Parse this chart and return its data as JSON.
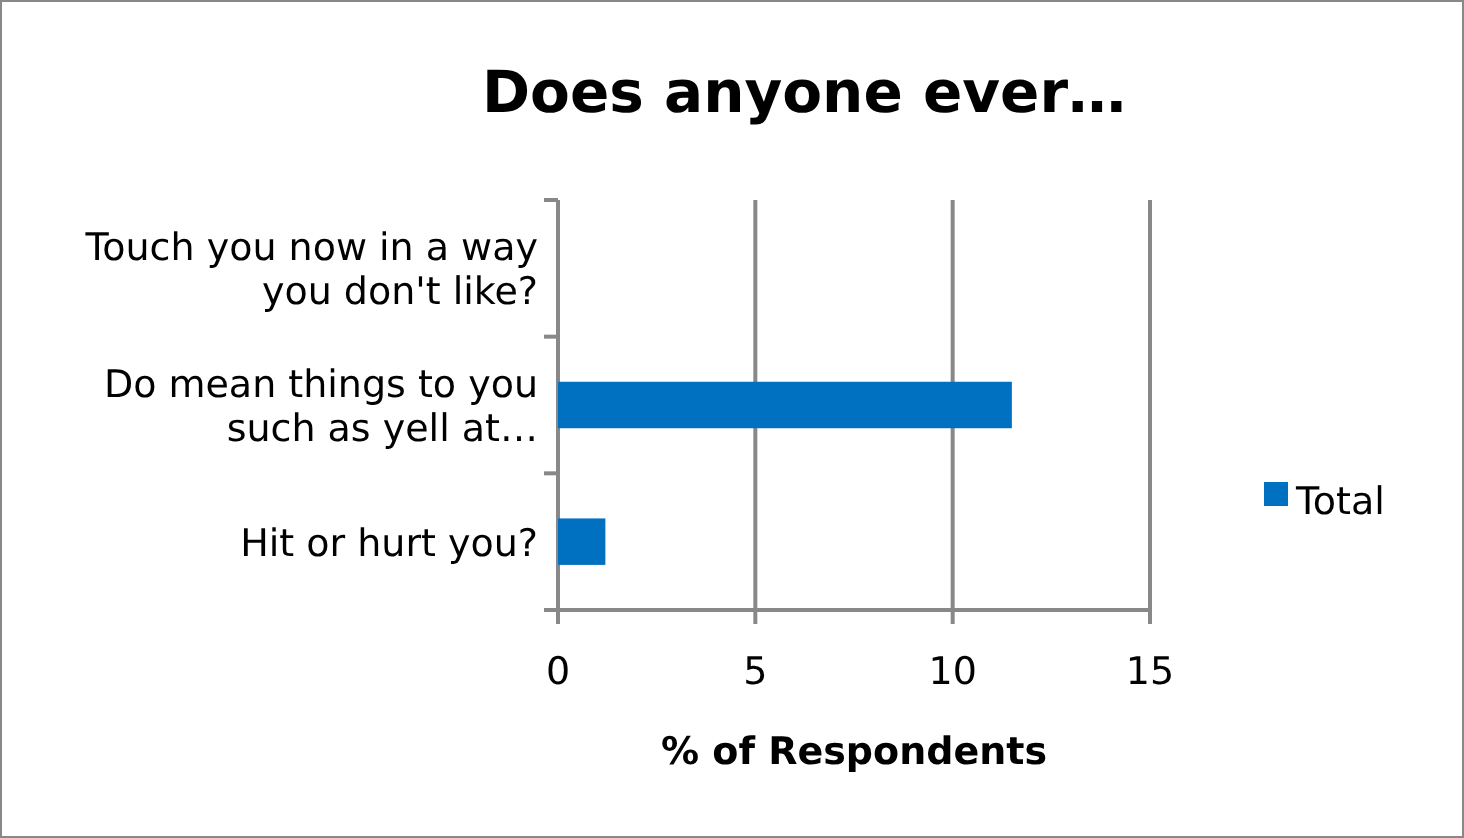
{
  "chart_data": {
    "type": "bar",
    "orientation": "horizontal",
    "title": "Does anyone ever…",
    "xlabel": "% of Respondents",
    "categories": [
      "Touch you now in a way you don't like?",
      "Do mean things to you such as yell at…",
      "Hit or hurt you?"
    ],
    "series": [
      {
        "name": "Total",
        "color": "#0070c0",
        "values": [
          0,
          11.5,
          1.2
        ]
      }
    ],
    "xlim": [
      0,
      15
    ],
    "xticks": [
      0,
      5,
      10,
      15
    ],
    "grid": "x",
    "legend": "right"
  }
}
